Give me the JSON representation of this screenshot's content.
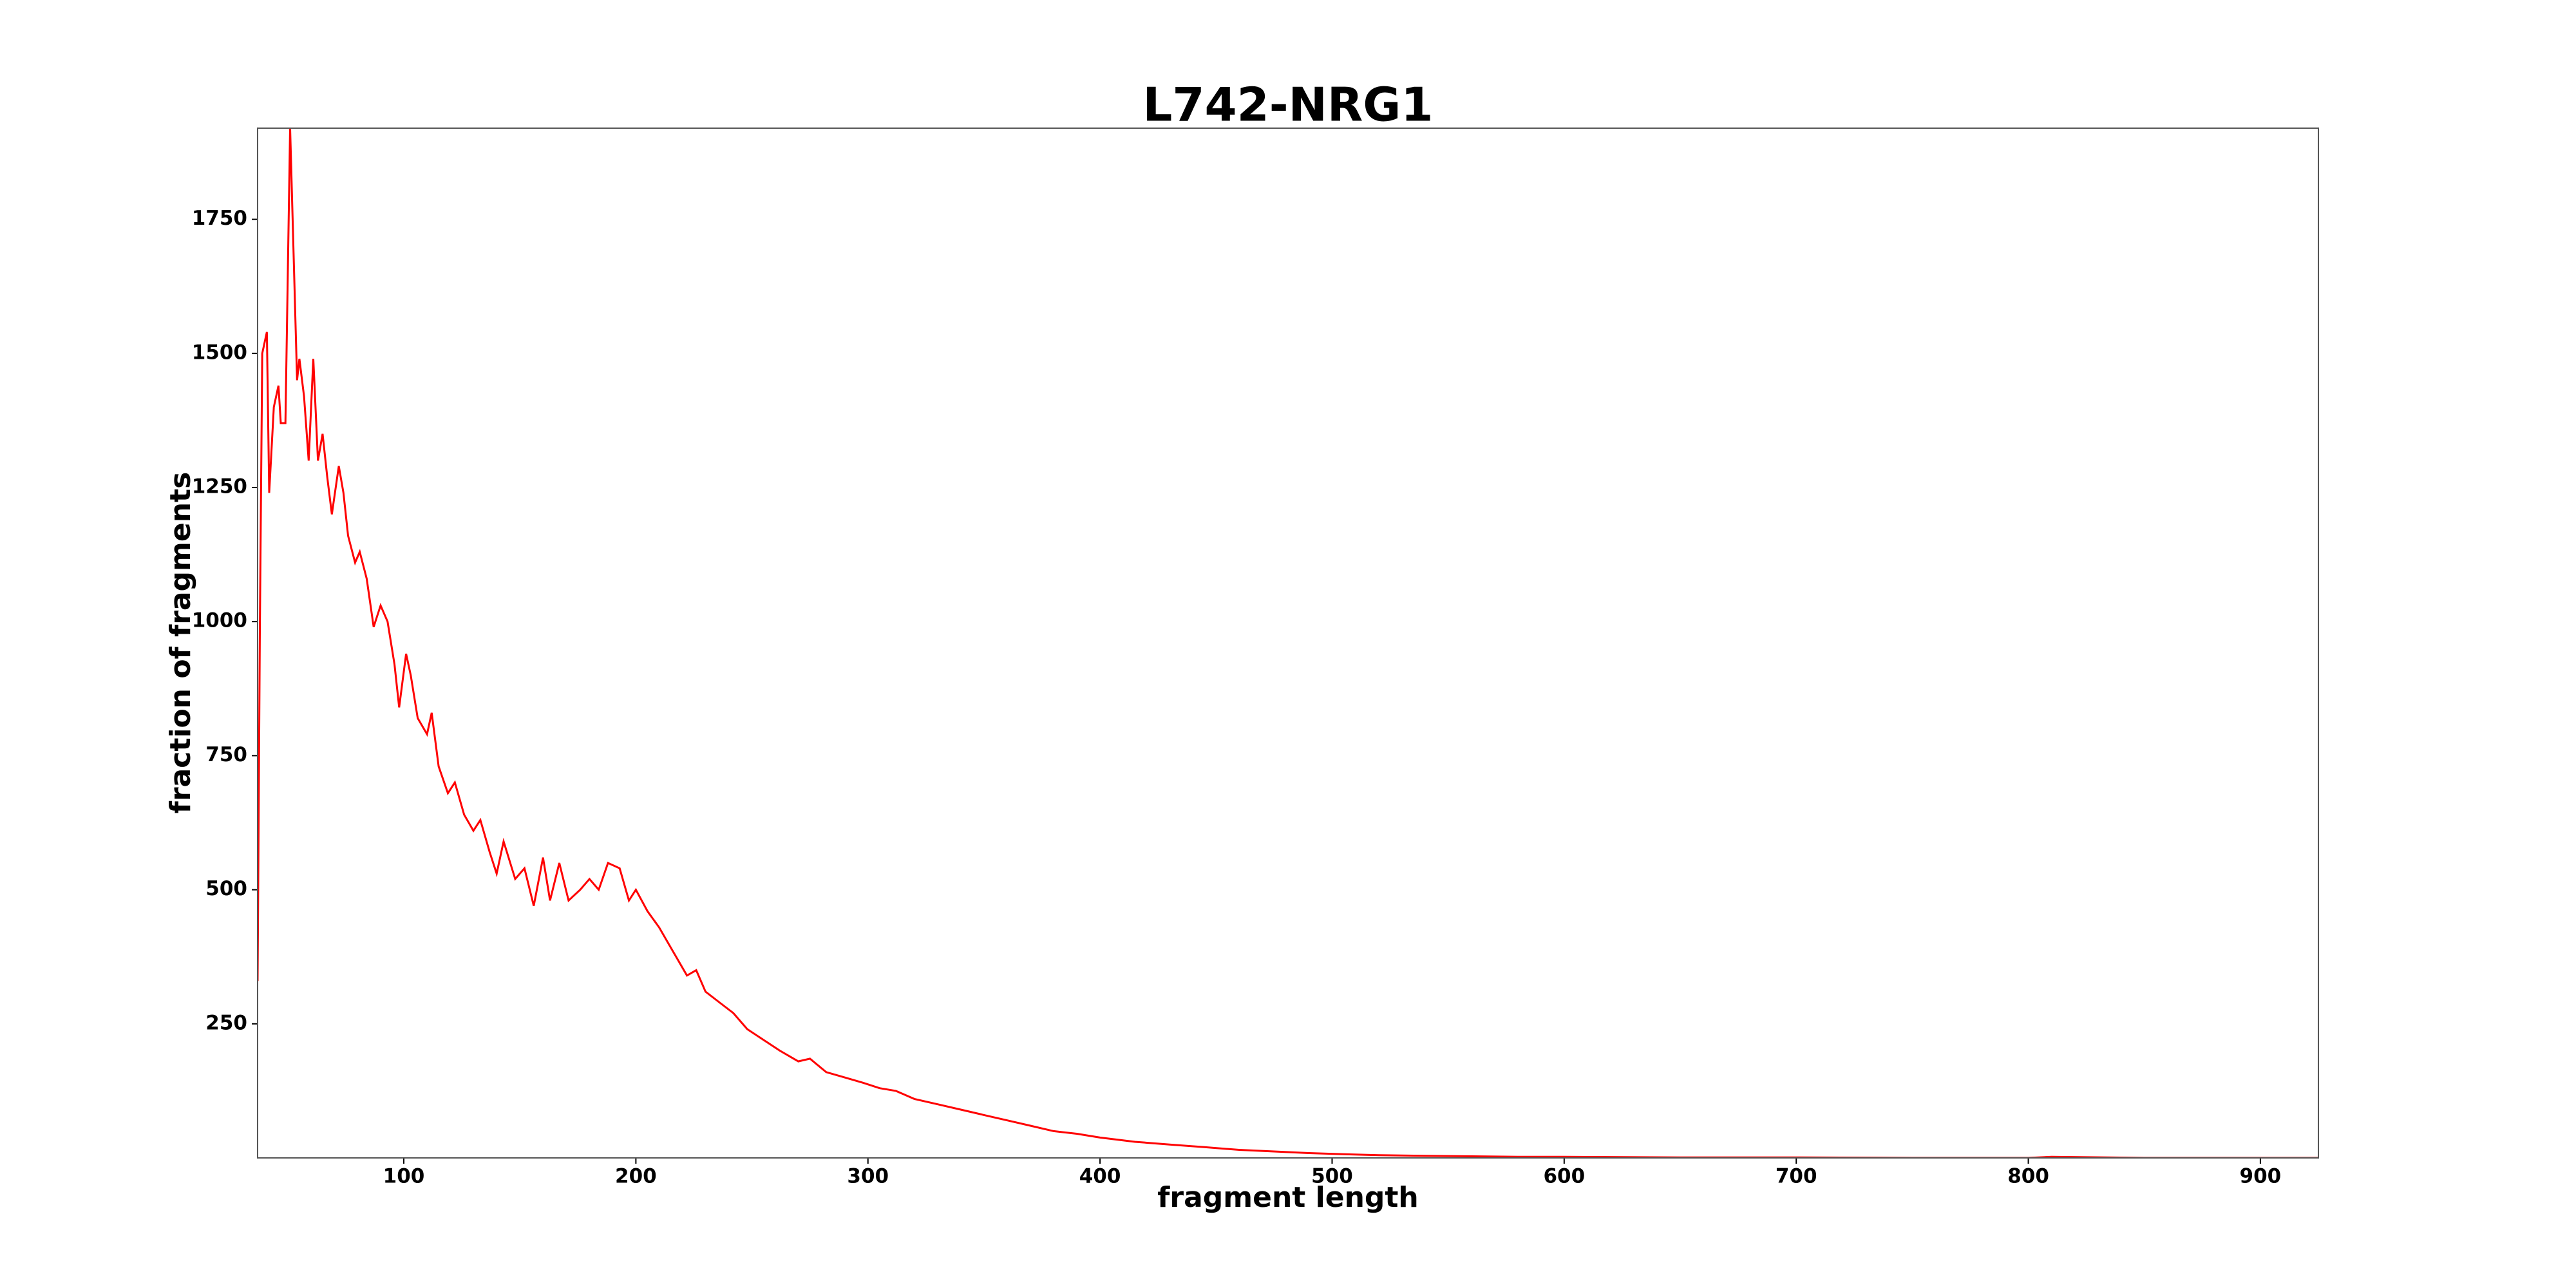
{
  "chart_data": {
    "type": "line",
    "title": "L742-NRG1",
    "x_label": "fragment length",
    "y_label": "fraction of fragments",
    "series": [
      {
        "name": "L742-NRG1",
        "color": "#ff0000",
        "x": [
          37,
          38,
          39,
          41,
          42,
          44,
          46,
          47,
          49,
          51,
          54,
          55,
          57,
          59,
          61,
          63,
          65,
          67,
          69,
          72,
          74,
          76,
          79,
          81,
          84,
          87,
          90,
          93,
          96,
          98,
          101,
          103,
          106,
          110,
          112,
          115,
          119,
          122,
          126,
          130,
          133,
          137,
          140,
          143,
          148,
          152,
          156,
          160,
          163,
          167,
          171,
          176,
          180,
          184,
          188,
          193,
          197,
          200,
          205,
          210,
          214,
          218,
          222,
          226,
          230,
          236,
          242,
          248,
          255,
          262,
          270,
          275,
          282,
          290,
          298,
          305,
          312,
          320,
          330,
          340,
          350,
          360,
          370,
          380,
          390,
          400,
          415,
          430,
          445,
          460,
          475,
          490,
          505,
          520,
          540,
          560,
          580,
          600,
          650,
          700,
          750,
          800,
          810,
          850,
          925
        ],
        "values": [
          330,
          1000,
          1500,
          1540,
          1240,
          1400,
          1440,
          1370,
          1370,
          1920,
          1450,
          1490,
          1420,
          1300,
          1490,
          1300,
          1350,
          1270,
          1200,
          1290,
          1240,
          1160,
          1110,
          1130,
          1080,
          990,
          1030,
          1000,
          920,
          840,
          940,
          900,
          820,
          790,
          830,
          730,
          680,
          700,
          640,
          610,
          630,
          570,
          530,
          590,
          520,
          540,
          470,
          560,
          480,
          550,
          480,
          500,
          520,
          500,
          550,
          540,
          480,
          500,
          460,
          430,
          400,
          370,
          340,
          350,
          310,
          290,
          270,
          240,
          220,
          200,
          180,
          185,
          160,
          150,
          140,
          130,
          125,
          110,
          100,
          90,
          80,
          70,
          60,
          50,
          45,
          38,
          30,
          25,
          20,
          15,
          12,
          9,
          7,
          5,
          4,
          3,
          2,
          2,
          1,
          1,
          0,
          0,
          2,
          0,
          0
        ]
      }
    ],
    "xlim": [
      37,
      925
    ],
    "ylim": [
      0,
      1920
    ],
    "xticks": [
      100,
      200,
      300,
      400,
      500,
      600,
      700,
      800,
      900
    ],
    "yticks": [
      250,
      500,
      750,
      1000,
      1250,
      1500,
      1750
    ]
  }
}
